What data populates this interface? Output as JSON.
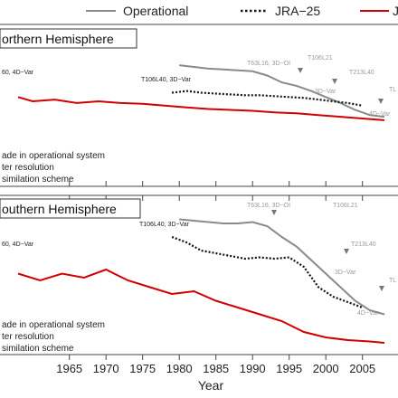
{
  "legend": [
    {
      "label": "Operational",
      "color": "#8a8a8a",
      "style": "solid"
    },
    {
      "label": "JRA−25",
      "color": "#111111",
      "style": "dotted"
    },
    {
      "label": "J",
      "color": "#d00000",
      "style": "solid"
    }
  ],
  "xlabel": "Year",
  "panels": [
    {
      "title": "orthern Hemisphere",
      "annotations_black": [
        "60, 4D−Var",
        "T106L40, 3D−Var"
      ],
      "annotations_gray": [
        "T63L16, 3D−OI",
        "T106L21",
        "T213L40",
        "3D−Var",
        "4D−Var",
        "TL"
      ],
      "notes": [
        "ade in operational system",
        "ter resolution",
        "similation scheme"
      ]
    },
    {
      "title": "outhern Hemisphere",
      "annotations_black": [
        "60, 4D−Var",
        "T106L40, 3D−Var"
      ],
      "annotations_gray": [
        "T63L16, 3D−OI",
        "T106L21",
        "T213L40",
        "3D−Var",
        "4D−Var",
        "TL"
      ],
      "notes": [
        "ade in operational system",
        "ter resolution",
        "similation scheme"
      ]
    }
  ],
  "chart_data": {
    "type": "line",
    "x_ticks": [
      1965,
      1970,
      1975,
      1980,
      1985,
      1990,
      1995,
      2000,
      2005
    ],
    "x_tick_labels": [
      "1965",
      "1970",
      "1975",
      "1980",
      "1985",
      "1990",
      "1995",
      "2000",
      "2005"
    ],
    "xlim": [
      1958,
      2008
    ],
    "ylim": [
      0,
      1
    ],
    "grid": false,
    "legend_position": "top",
    "panels": [
      {
        "name": "Northern Hemisphere",
        "series": [
          {
            "name": "Operational",
            "x": [
              1980,
              1982,
              1984,
              1986,
              1988,
              1990,
              1992,
              1994,
              1996,
              1998,
              2000,
              2002,
              2004,
              2006,
              2008
            ],
            "y": [
              0.82,
              0.8,
              0.78,
              0.77,
              0.76,
              0.75,
              0.7,
              0.62,
              0.58,
              0.52,
              0.45,
              0.38,
              0.3,
              0.24,
              0.22
            ]
          },
          {
            "name": "JRA−25",
            "x": [
              1979,
              1981,
              1983,
              1985,
              1987,
              1989,
              1991,
              1993,
              1995,
              1997,
              1999,
              2001,
              2003,
              2005
            ],
            "y": [
              0.5,
              0.52,
              0.5,
              0.49,
              0.48,
              0.47,
              0.47,
              0.46,
              0.45,
              0.44,
              0.42,
              0.4,
              0.38,
              0.35
            ]
          },
          {
            "name": "J",
            "x": [
              1958,
              1960,
              1963,
              1966,
              1969,
              1972,
              1975,
              1978,
              1981,
              1984,
              1987,
              1990,
              1993,
              1996,
              1999,
              2002,
              2005,
              2008
            ],
            "y": [
              0.45,
              0.4,
              0.42,
              0.38,
              0.4,
              0.38,
              0.37,
              0.35,
              0.33,
              0.31,
              0.3,
              0.29,
              0.27,
              0.26,
              0.24,
              0.22,
              0.2,
              0.18
            ]
          }
        ]
      },
      {
        "name": "Southern Hemisphere",
        "series": [
          {
            "name": "Operational",
            "x": [
              1980,
              1982,
              1984,
              1986,
              1988,
              1990,
              1992,
              1994,
              1996,
              1998,
              2000,
              2002,
              2004,
              2006,
              2008
            ],
            "y": [
              0.95,
              0.94,
              0.93,
              0.92,
              0.92,
              0.93,
              0.9,
              0.82,
              0.75,
              0.65,
              0.55,
              0.45,
              0.35,
              0.28,
              0.25
            ]
          },
          {
            "name": "JRA−25",
            "x": [
              1979,
              1981,
              1983,
              1985,
              1987,
              1989,
              1991,
              1993,
              1995,
              1997,
              1999,
              2001,
              2003,
              2005
            ],
            "y": [
              0.82,
              0.78,
              0.72,
              0.7,
              0.68,
              0.66,
              0.67,
              0.66,
              0.67,
              0.6,
              0.45,
              0.38,
              0.34,
              0.3
            ]
          },
          {
            "name": "J",
            "x": [
              1958,
              1961,
              1964,
              1967,
              1970,
              1973,
              1976,
              1979,
              1982,
              1985,
              1988,
              1991,
              1994,
              1997,
              2000,
              2003,
              2006,
              2008
            ],
            "y": [
              0.55,
              0.5,
              0.55,
              0.52,
              0.58,
              0.5,
              0.45,
              0.4,
              0.42,
              0.35,
              0.3,
              0.25,
              0.2,
              0.12,
              0.08,
              0.06,
              0.05,
              0.04
            ]
          }
        ]
      }
    ]
  }
}
